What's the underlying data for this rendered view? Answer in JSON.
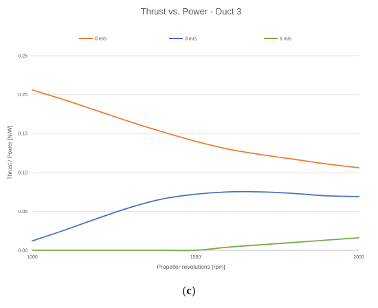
{
  "chart_data": {
    "type": "line",
    "title": "Thrust vs. Power - Duct 3",
    "xlabel": "Propeller revolutions [rpm]",
    "ylabel": "Thrust / Power [N/W]",
    "xlim": [
      1000,
      2000
    ],
    "ylim": [
      0,
      0.25
    ],
    "x_ticks": [
      "1000",
      "1500",
      "2000"
    ],
    "y_ticks": [
      "0.00",
      "0.05",
      "0.10",
      "0.15",
      "0.20",
      "0.25"
    ],
    "grid": "horizontal",
    "legend_position": "top",
    "series": [
      {
        "name": "0 m/s",
        "color": "#ED7D31",
        "x": [
          1000,
          1100,
          1200,
          1300,
          1400,
          1500,
          1600,
          1700,
          1800,
          1900,
          2000
        ],
        "y": [
          0.206,
          0.193,
          0.179,
          0.165,
          0.152,
          0.14,
          0.13,
          0.123,
          0.117,
          0.111,
          0.106
        ]
      },
      {
        "name": "3 m/s",
        "color": "#4472C4",
        "x": [
          1000,
          1100,
          1200,
          1300,
          1400,
          1500,
          1600,
          1700,
          1800,
          1900,
          2000
        ],
        "y": [
          0.012,
          0.026,
          0.041,
          0.055,
          0.066,
          0.072,
          0.075,
          0.075,
          0.073,
          0.07,
          0.069
        ]
      },
      {
        "name": "6 m/s",
        "color": "#70AD47",
        "x": [
          1000,
          1100,
          1200,
          1300,
          1400,
          1500,
          1600,
          1700,
          1800,
          1900,
          2000
        ],
        "y": [
          0.0,
          0.0,
          0.0,
          0.0,
          0.0,
          0.0,
          0.004,
          0.007,
          0.01,
          0.013,
          0.016
        ]
      }
    ]
  },
  "caption": {
    "open": "(",
    "letter": "c",
    "close": ")"
  }
}
